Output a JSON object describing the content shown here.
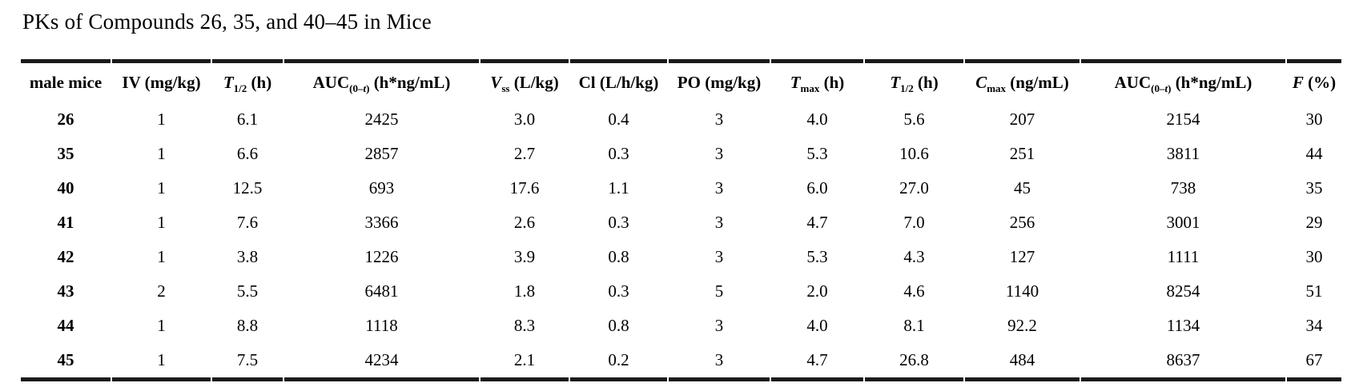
{
  "page": {
    "title": "PKs of Compounds 26, 35, and 40–45 in Mice"
  },
  "table": {
    "columns": [
      {
        "id": "male-mice",
        "segments": [
          {
            "text": "male mice"
          }
        ]
      },
      {
        "id": "iv-dose",
        "segments": [
          {
            "text": "IV (mg/kg)"
          }
        ]
      },
      {
        "id": "iv-t-half",
        "segments": [
          {
            "text": "T",
            "italic": true
          },
          {
            "text": "1/2",
            "sub": true
          },
          {
            "text": " (h)"
          }
        ]
      },
      {
        "id": "iv-auc",
        "segments": [
          {
            "text": "AUC"
          },
          {
            "text": "(0–",
            "sub": true
          },
          {
            "text": "t",
            "sub": true,
            "italic": true
          },
          {
            "text": ")",
            "sub": true
          },
          {
            "text": " (h*ng/mL)"
          }
        ]
      },
      {
        "id": "vss",
        "segments": [
          {
            "text": "V",
            "italic": true
          },
          {
            "text": "ss",
            "sub": true
          },
          {
            "text": " (L/kg)"
          }
        ]
      },
      {
        "id": "cl",
        "segments": [
          {
            "text": "Cl (L/h/kg)"
          }
        ]
      },
      {
        "id": "po-dose",
        "segments": [
          {
            "text": "PO (mg/kg)"
          }
        ]
      },
      {
        "id": "tmax",
        "segments": [
          {
            "text": "T",
            "italic": true
          },
          {
            "text": "max",
            "sub": true
          },
          {
            "text": " (h)"
          }
        ]
      },
      {
        "id": "po-t-half",
        "segments": [
          {
            "text": "T",
            "italic": true
          },
          {
            "text": "1/2",
            "sub": true
          },
          {
            "text": " (h)"
          }
        ]
      },
      {
        "id": "cmax",
        "segments": [
          {
            "text": "C",
            "italic": true
          },
          {
            "text": "max",
            "sub": true
          },
          {
            "text": " (ng/mL)"
          }
        ]
      },
      {
        "id": "po-auc",
        "segments": [
          {
            "text": "AUC"
          },
          {
            "text": "(0–",
            "sub": true
          },
          {
            "text": "t",
            "sub": true,
            "italic": true
          },
          {
            "text": ")",
            "sub": true
          },
          {
            "text": " (h*ng/mL)"
          }
        ]
      },
      {
        "id": "f-percent",
        "segments": [
          {
            "text": "F",
            "italic": true
          },
          {
            "text": " (%)"
          }
        ]
      }
    ],
    "rows": [
      {
        "compound": "26",
        "values": [
          "1",
          "6.1",
          "2425",
          "3.0",
          "0.4",
          "3",
          "4.0",
          "5.6",
          "207",
          "2154",
          "30"
        ]
      },
      {
        "compound": "35",
        "values": [
          "1",
          "6.6",
          "2857",
          "2.7",
          "0.3",
          "3",
          "5.3",
          "10.6",
          "251",
          "3811",
          "44"
        ]
      },
      {
        "compound": "40",
        "values": [
          "1",
          "12.5",
          "693",
          "17.6",
          "1.1",
          "3",
          "6.0",
          "27.0",
          "45",
          "738",
          "35"
        ]
      },
      {
        "compound": "41",
        "values": [
          "1",
          "7.6",
          "3366",
          "2.6",
          "0.3",
          "3",
          "4.7",
          "7.0",
          "256",
          "3001",
          "29"
        ]
      },
      {
        "compound": "42",
        "values": [
          "1",
          "3.8",
          "1226",
          "3.9",
          "0.8",
          "3",
          "5.3",
          "4.3",
          "127",
          "1111",
          "30"
        ]
      },
      {
        "compound": "43",
        "values": [
          "2",
          "5.5",
          "6481",
          "1.8",
          "0.3",
          "5",
          "2.0",
          "4.6",
          "1140",
          "8254",
          "51"
        ]
      },
      {
        "compound": "44",
        "values": [
          "1",
          "8.8",
          "1118",
          "8.3",
          "0.8",
          "3",
          "4.0",
          "8.1",
          "92.2",
          "1134",
          "34"
        ]
      },
      {
        "compound": "45",
        "values": [
          "1",
          "7.5",
          "4234",
          "2.1",
          "0.2",
          "3",
          "4.7",
          "26.8",
          "484",
          "8637",
          "67"
        ]
      }
    ]
  }
}
